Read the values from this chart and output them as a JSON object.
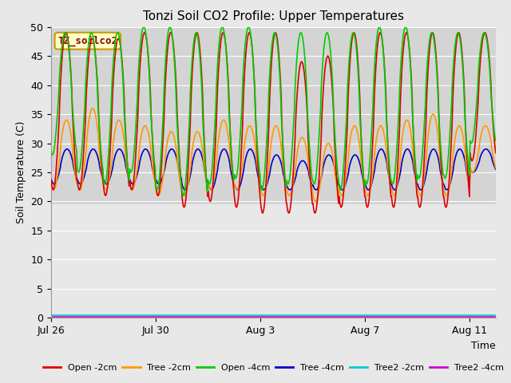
{
  "title": "Tonzi Soil CO2 Profile: Upper Temperatures",
  "ylabel": "Soil Temperature (C)",
  "xlabel": "Time",
  "ylim": [
    0,
    50
  ],
  "yticks": [
    0,
    5,
    10,
    15,
    20,
    25,
    30,
    35,
    40,
    45,
    50
  ],
  "x_tick_labels": [
    "Jul 26",
    "Jul 30",
    "Aug 3",
    "Aug 7",
    "Aug 11"
  ],
  "x_tick_days": [
    0,
    4,
    8,
    12,
    16
  ],
  "n_days": 17,
  "background_upper_color": "#d8d8d8",
  "background_lower_color": "#e8e8e8",
  "upper_bg_ylim": [
    19.5,
    50
  ],
  "grid_color": "#c8c8c8",
  "label_box_text": "TZ_soilco2",
  "label_box_color": "#ffffcc",
  "label_box_edge": "#cc9900",
  "series": [
    {
      "label": "Open -2cm",
      "color": "#dd0000",
      "lw": 1.2
    },
    {
      "label": "Tree -2cm",
      "color": "#ff9900",
      "lw": 1.2
    },
    {
      "label": "Open -4cm",
      "color": "#00cc00",
      "lw": 1.2
    },
    {
      "label": "Tree -4cm",
      "color": "#0000cc",
      "lw": 1.2
    },
    {
      "label": "Tree2 -2cm",
      "color": "#00cccc",
      "lw": 1.2
    },
    {
      "label": "Tree2 -4cm",
      "color": "#cc00cc",
      "lw": 1.2
    }
  ],
  "open2_peaks": [
    49,
    48,
    48,
    49,
    49,
    49,
    49,
    49,
    49,
    44,
    45,
    49,
    49,
    49,
    49,
    49,
    49
  ],
  "open2_troughs": [
    22,
    22,
    21,
    22,
    21,
    19,
    20,
    19,
    18,
    18,
    18,
    19,
    19,
    19,
    19,
    19,
    27
  ],
  "orange_peaks": [
    34,
    36,
    34,
    33,
    32,
    32,
    34,
    33,
    33,
    31,
    30,
    33,
    33,
    34,
    35,
    33,
    33
  ],
  "orange_troughs": [
    22,
    22,
    22,
    22,
    21,
    21,
    22,
    22,
    21,
    21,
    20,
    21,
    21,
    21,
    21,
    21,
    25
  ],
  "green_peaks": [
    49,
    49,
    49,
    50,
    50,
    49,
    50,
    50,
    49,
    49,
    49,
    49,
    50,
    50,
    49,
    49,
    49
  ],
  "green_troughs": [
    28,
    25,
    23,
    25,
    22,
    21,
    23,
    24,
    22,
    23,
    23,
    22,
    23,
    23,
    24,
    24,
    30
  ],
  "blue_peaks": [
    29,
    29,
    29,
    29,
    29,
    29,
    29,
    29,
    28,
    27,
    28,
    28,
    29,
    29,
    29,
    29,
    29
  ],
  "blue_troughs": [
    23,
    23,
    23,
    23,
    23,
    22,
    22,
    22,
    22,
    22,
    22,
    22,
    22,
    22,
    22,
    22,
    25
  ]
}
